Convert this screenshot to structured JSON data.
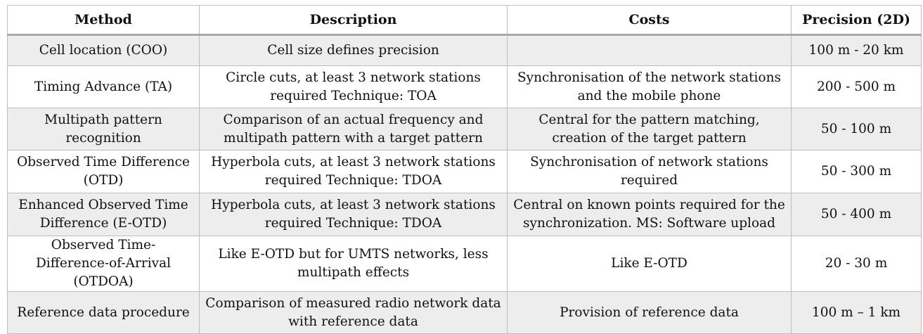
{
  "table": {
    "headers": [
      "Method",
      "Description",
      "Costs",
      "Precision (2D)"
    ],
    "rows": [
      {
        "method": "Cell location (COO)",
        "description": "Cell size defines precision",
        "costs": "",
        "precision": "100 m - 20 km"
      },
      {
        "method": "Timing Advance (TA)",
        "description": "Circle cuts, at least 3 network stations required Technique: TOA",
        "costs": "Synchronisation of the network stations and the mobile phone",
        "precision": "200 - 500 m"
      },
      {
        "method": "Multipath pattern recognition",
        "description": "Comparison of an actual frequency and multipath pattern with a target pattern",
        "costs": "Central for the pattern matching, creation of the target pattern",
        "precision": "50 - 100 m"
      },
      {
        "method": "Observed Time Difference (OTD)",
        "description": "Hyperbola cuts, at least 3 network stations required Technique: TDOA",
        "costs": "Synchronisation of network stations required",
        "precision": "50 - 300 m"
      },
      {
        "method": "Enhanced Observed Time Difference (E-OTD)",
        "description": "Hyperbola cuts, at least 3 network stations required Technique: TDOA",
        "costs": "Central on known points required for the synchronization. MS: Software upload",
        "precision": "50 - 400 m"
      },
      {
        "method": "Observed Time- Difference-of-Arrival (OTDOA)",
        "description": "Like E-OTD but for UMTS networks, less multipath effects",
        "costs": "Like E-OTD",
        "precision": "20 - 30 m"
      },
      {
        "method": "Reference data procedure",
        "description": "Comparison of measured radio network data with reference data",
        "costs": "Provision of reference data",
        "precision": "100 m – 1 km"
      }
    ]
  }
}
